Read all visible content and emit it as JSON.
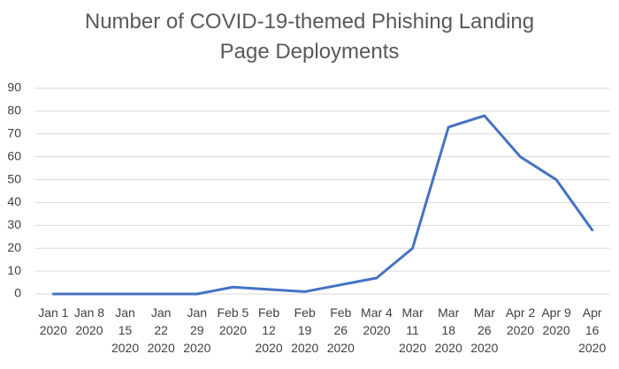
{
  "chart_data": {
    "type": "line",
    "title": "Number of COVID-19-themed Phishing Landing Page Deployments",
    "categories": [
      "Jan 1 2020",
      "Jan 8 2020",
      "Jan 15 2020",
      "Jan 22 2020",
      "Jan 29 2020",
      "Feb 5 2020",
      "Feb 12 2020",
      "Feb 19 2020",
      "Feb 26 2020",
      "Mar 4 2020",
      "Mar 11 2020",
      "Mar 18 2020",
      "Mar 26 2020",
      "Apr 2 2020",
      "Apr 9 2020",
      "Apr 16 2020"
    ],
    "values": [
      0,
      0,
      0,
      0,
      0,
      3,
      2,
      1,
      4,
      7,
      20,
      73,
      78,
      60,
      50,
      28
    ],
    "color": "#4472c4",
    "ylim": [
      0,
      90
    ],
    "yticks": [
      0,
      10,
      20,
      30,
      40,
      50,
      60,
      70,
      80,
      90
    ],
    "grid": true
  }
}
